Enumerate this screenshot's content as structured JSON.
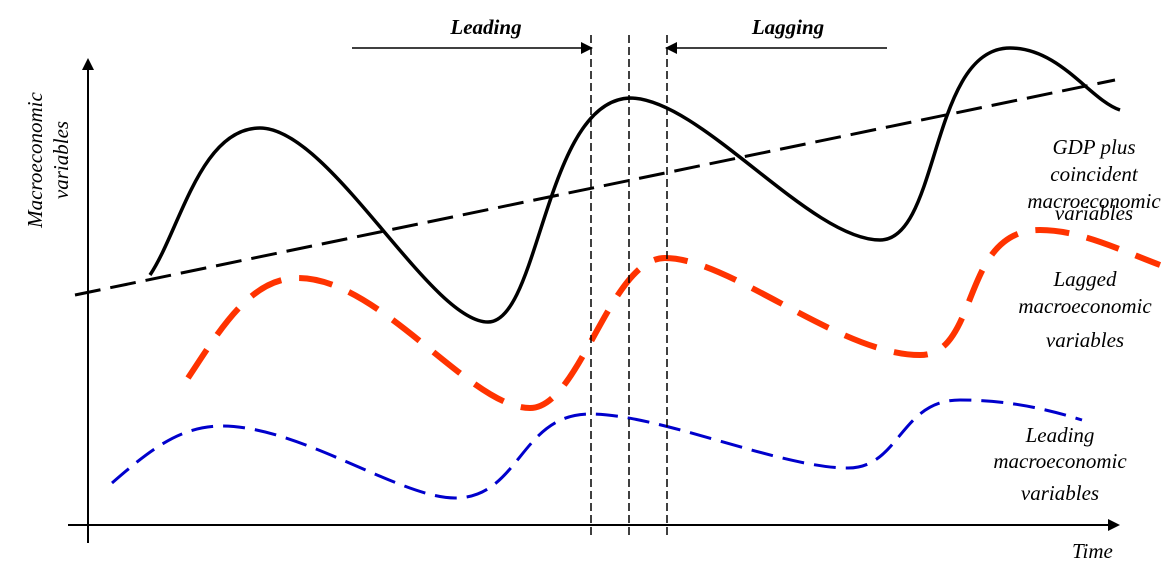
{
  "diagram": {
    "y_axis_label_line1": "Macroeconomic",
    "y_axis_label_line2": "variables",
    "x_axis_label": "Time",
    "leading_marker": "Leading",
    "lagging_marker": "Lagging",
    "series": {
      "gdp": {
        "label_lines": [
          "GDP plus",
          "coincident",
          "macroeconomic",
          "variables"
        ],
        "color": "#000000",
        "style": "solid"
      },
      "lagged": {
        "label_lines": [
          "Lagged",
          "macroeconomic",
          "variables"
        ],
        "color": "#ff3300",
        "style": "dashed"
      },
      "leading": {
        "label_lines": [
          "Leading",
          "macroeconomic",
          "variables"
        ],
        "color": "#0000cc",
        "style": "dashed"
      },
      "trend": {
        "color": "#000000",
        "style": "dashed"
      }
    }
  }
}
